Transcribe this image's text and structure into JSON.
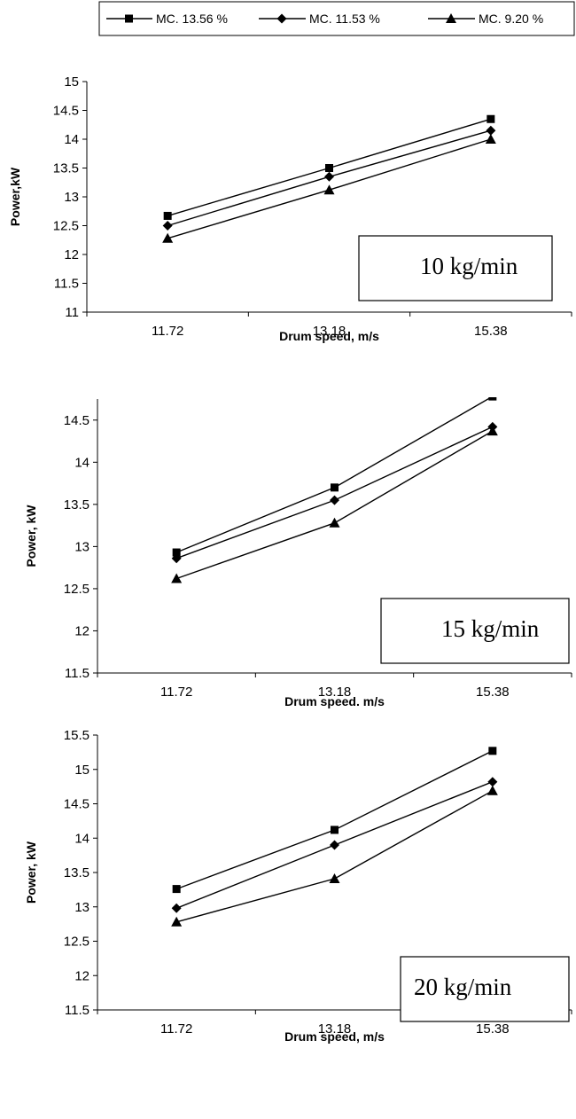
{
  "legend": {
    "entries": [
      {
        "label": "MC. 13.56 %",
        "marker": "square-icon"
      },
      {
        "label": "MC. 11.53 %",
        "marker": "diamond-icon"
      },
      {
        "label": "MC. 9.20 %",
        "marker": "triangle-icon"
      }
    ],
    "placement": "top"
  },
  "chart_data": [
    {
      "type": "line",
      "box_label": "10 kg/min",
      "xlabel": "Drum speed, m/s",
      "ylabel": "Power,kW",
      "categories": [
        "11.72",
        "13.18",
        "15.38"
      ],
      "ylim": [
        11,
        15
      ],
      "yticks": [
        "11",
        "11.5",
        "12",
        "12.5",
        "13",
        "13.5",
        "14",
        "14.5",
        "15"
      ],
      "grid": false,
      "series": [
        {
          "name": "MC. 13.56 %",
          "marker": "square",
          "values": [
            12.67,
            13.5,
            14.35
          ]
        },
        {
          "name": "MC. 11.53 %",
          "marker": "diamond",
          "values": [
            12.5,
            13.35,
            14.15
          ]
        },
        {
          "name": "MC. 9.20 %",
          "marker": "triangle",
          "values": [
            12.28,
            13.12,
            14.0
          ]
        }
      ]
    },
    {
      "type": "line",
      "box_label": "15 kg/min",
      "xlabel": "Drum speed. m/s",
      "ylabel": "Power, kW",
      "categories": [
        "11.72",
        "13.18",
        "15.38"
      ],
      "ylim": [
        11.5,
        14.75
      ],
      "yticks": [
        "11.5",
        "12",
        "12.5",
        "13",
        "13.5",
        "14",
        "14.5"
      ],
      "grid": false,
      "series": [
        {
          "name": "MC. 13.56 %",
          "marker": "square",
          "values": [
            12.93,
            13.7,
            14.78
          ]
        },
        {
          "name": "MC. 11.53 %",
          "marker": "diamond",
          "values": [
            12.86,
            13.55,
            14.42
          ]
        },
        {
          "name": "MC. 9.20 %",
          "marker": "triangle",
          "values": [
            12.62,
            13.28,
            14.37
          ]
        }
      ]
    },
    {
      "type": "line",
      "box_label": "20 kg/min",
      "xlabel": "Drum speed, m/s",
      "ylabel": "Power, kW",
      "categories": [
        "11.72",
        "13.18",
        "15.38"
      ],
      "ylim": [
        11.5,
        15.5
      ],
      "yticks": [
        "11.5",
        "12",
        "12.5",
        "13",
        "13.5",
        "14",
        "14.5",
        "15",
        "15.5"
      ],
      "grid": false,
      "series": [
        {
          "name": "MC. 13.56 %",
          "marker": "square",
          "values": [
            13.26,
            14.12,
            15.27
          ]
        },
        {
          "name": "MC. 11.53 %",
          "marker": "diamond",
          "values": [
            12.98,
            13.9,
            14.82
          ]
        },
        {
          "name": "MC. 9.20 %",
          "marker": "triangle",
          "values": [
            12.78,
            13.41,
            14.69
          ]
        }
      ]
    }
  ]
}
